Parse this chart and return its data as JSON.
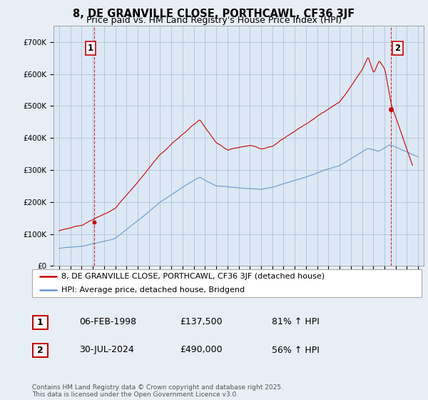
{
  "title": "8, DE GRANVILLE CLOSE, PORTHCAWL, CF36 3JF",
  "subtitle": "Price paid vs. HM Land Registry's House Price Index (HPI)",
  "xlim": [
    1994.5,
    2027.5
  ],
  "ylim": [
    0,
    750000
  ],
  "yticks": [
    0,
    100000,
    200000,
    300000,
    400000,
    500000,
    600000,
    700000
  ],
  "ytick_labels": [
    "£0",
    "£100K",
    "£200K",
    "£300K",
    "£400K",
    "£500K",
    "£600K",
    "£700K"
  ],
  "background_color": "#e8eef5",
  "plot_bg_color": "#dce8f5",
  "grid_color": "#b0c4d8",
  "line1_color": "#cc0000",
  "line2_color": "#6699cc",
  "vline_color": "#cc0000",
  "point1_year": 1998.1,
  "point1_value": 137500,
  "point2_year": 2024.58,
  "point2_value": 490000,
  "legend_line1": "8, DE GRANVILLE CLOSE, PORTHCAWL, CF36 3JF (detached house)",
  "legend_line2": "HPI: Average price, detached house, Bridgend",
  "table_rows": [
    {
      "num": "1",
      "date": "06-FEB-1998",
      "price": "£137,500",
      "hpi": "81% ↑ HPI"
    },
    {
      "num": "2",
      "date": "30-JUL-2024",
      "price": "£490,000",
      "hpi": "56% ↑ HPI"
    }
  ],
  "footer": "Contains HM Land Registry data © Crown copyright and database right 2025.\nThis data is licensed under the Open Government Licence v3.0.",
  "title_fontsize": 10.5,
  "subtitle_fontsize": 9,
  "axis_fontsize": 7.5,
  "legend_fontsize": 8,
  "table_fontsize": 9,
  "footer_fontsize": 6.5
}
